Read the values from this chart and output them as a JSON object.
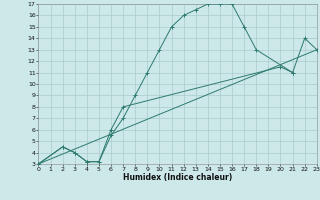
{
  "xlabel": "Humidex (Indice chaleur)",
  "bg_color": "#cce8e8",
  "grid_color": "#aacccc",
  "line_color": "#2d7a6e",
  "xlim": [
    0,
    23
  ],
  "ylim": [
    3,
    17
  ],
  "xticks": [
    0,
    1,
    2,
    3,
    4,
    5,
    6,
    7,
    8,
    9,
    10,
    11,
    12,
    13,
    14,
    15,
    16,
    17,
    18,
    19,
    20,
    21,
    22,
    23
  ],
  "yticks": [
    3,
    4,
    5,
    6,
    7,
    8,
    9,
    10,
    11,
    12,
    13,
    14,
    15,
    16,
    17
  ],
  "curve1_x": [
    0,
    2,
    3,
    4,
    5,
    6,
    7,
    8,
    9,
    10,
    11,
    12,
    13,
    14,
    15,
    16,
    17,
    18,
    21
  ],
  "curve1_y": [
    3,
    4.5,
    4.0,
    3.2,
    3.2,
    5.5,
    7.0,
    9.0,
    11.0,
    13.0,
    15.0,
    16.0,
    16.5,
    17.0,
    17.0,
    17.0,
    15.0,
    13.0,
    11.0
  ],
  "curve2_x": [
    0,
    2,
    3,
    4,
    5,
    6,
    7,
    20,
    21,
    22,
    23
  ],
  "curve2_y": [
    3,
    4.5,
    4.0,
    3.2,
    3.2,
    6.0,
    8.0,
    11.5,
    11.0,
    14.0,
    13.0
  ],
  "curve3_x": [
    0,
    23
  ],
  "curve3_y": [
    3,
    13.0
  ]
}
